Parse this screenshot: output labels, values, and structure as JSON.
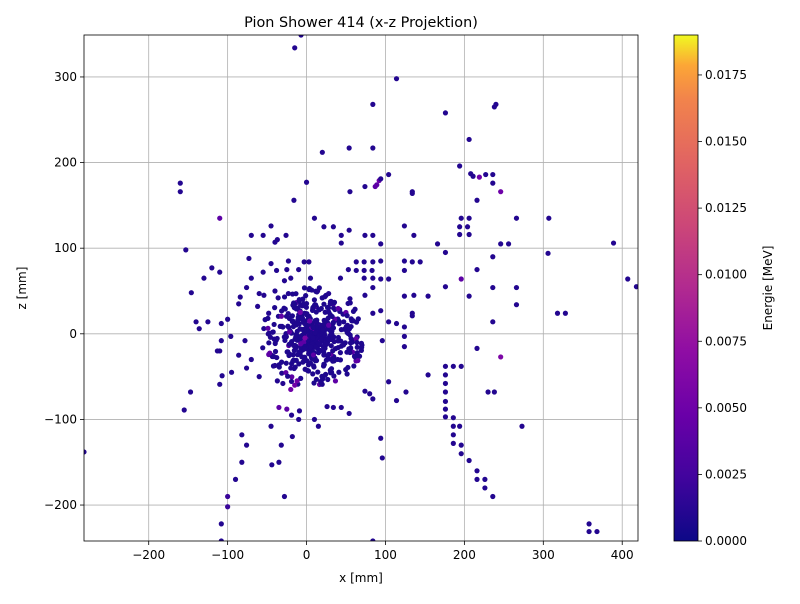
{
  "chart_data": {
    "type": "scatter",
    "title": "Pion Shower 414 (x-z Projektion)",
    "xlabel": "x [mm]",
    "ylabel": "z [mm]",
    "xlim": [
      -282,
      420
    ],
    "ylim": [
      -242,
      349
    ],
    "x_ticks": [
      -200,
      -100,
      0,
      100,
      200,
      300,
      400
    ],
    "y_ticks": [
      -200,
      -100,
      0,
      100,
      200,
      300
    ],
    "grid": true,
    "colorbar": {
      "label": "Energie [MeV]",
      "range": [
        0,
        0.019
      ],
      "ticks": [
        "0.0000",
        "0.0025",
        "0.0050",
        "0.0075",
        "0.0100",
        "0.0125",
        "0.0150",
        "0.0175"
      ],
      "colormap": "plasma"
    },
    "points": [
      [
        -15,
        334,
        0.001
      ],
      [
        -7,
        349,
        0.001
      ],
      [
        114,
        298,
        0.001
      ],
      [
        84,
        268,
        0.001
      ],
      [
        176,
        258,
        0.001
      ],
      [
        238,
        265,
        0.001
      ],
      [
        240,
        268,
        0.001
      ],
      [
        206,
        227,
        0.001
      ],
      [
        54,
        217,
        0.001
      ],
      [
        84,
        217,
        0.001
      ],
      [
        20,
        212,
        0.001
      ],
      [
        194,
        196,
        0.001
      ],
      [
        208,
        187,
        0.001
      ],
      [
        211,
        184,
        0.001
      ],
      [
        219,
        183,
        0.005
      ],
      [
        227,
        186,
        0.001
      ],
      [
        236,
        186,
        0.001
      ],
      [
        87,
        172,
        0.004
      ],
      [
        89,
        174,
        0.004
      ],
      [
        92,
        179,
        0.005
      ],
      [
        94,
        181,
        0.001
      ],
      [
        104,
        186,
        0.001
      ],
      [
        0,
        177,
        0.001
      ],
      [
        74,
        172,
        0.001
      ],
      [
        55,
        166,
        0.001
      ],
      [
        134,
        166,
        0.001
      ],
      [
        134,
        164,
        0.001
      ],
      [
        236,
        176,
        0.001
      ],
      [
        246,
        166,
        0.005
      ],
      [
        216,
        156,
        0.001
      ],
      [
        -16,
        156,
        0.001
      ],
      [
        -160,
        176,
        0.001
      ],
      [
        -160,
        166,
        0.001
      ],
      [
        -110,
        135,
        0.004
      ],
      [
        10,
        135,
        0.001
      ],
      [
        196,
        135,
        0.001
      ],
      [
        206,
        135,
        0.001
      ],
      [
        266,
        135,
        0.001
      ],
      [
        307,
        135,
        0.001
      ],
      [
        124,
        126,
        0.001
      ],
      [
        136,
        115,
        0.001
      ],
      [
        194,
        125,
        0.001
      ],
      [
        204,
        125,
        0.001
      ],
      [
        194,
        116,
        0.001
      ],
      [
        206,
        116,
        0.001
      ],
      [
        -45,
        126,
        0.001
      ],
      [
        -26,
        115,
        0.001
      ],
      [
        -55,
        115,
        0.001
      ],
      [
        -37,
        110,
        0.001
      ],
      [
        -70,
        115,
        0.001
      ],
      [
        -40,
        107,
        0.001
      ],
      [
        22,
        125,
        0.001
      ],
      [
        34,
        125,
        0.001
      ],
      [
        44,
        115,
        0.001
      ],
      [
        54,
        121,
        0.001
      ],
      [
        74,
        115,
        0.001
      ],
      [
        84,
        115,
        0.001
      ],
      [
        94,
        105,
        0.001
      ],
      [
        44,
        106,
        0.001
      ],
      [
        166,
        105,
        0.001
      ],
      [
        246,
        105,
        0.001
      ],
      [
        256,
        105,
        0.001
      ],
      [
        389,
        106,
        0.001
      ],
      [
        -153,
        98,
        0.001
      ],
      [
        -110,
        72,
        0.001
      ],
      [
        -120,
        77,
        0.001
      ],
      [
        -130,
        65,
        0.001
      ],
      [
        176,
        95,
        0.001
      ],
      [
        236,
        90,
        0.001
      ],
      [
        306,
        94,
        0.001
      ],
      [
        -23,
        85,
        0.001
      ],
      [
        -3,
        84,
        0.001
      ],
      [
        3,
        84,
        0.001
      ],
      [
        -45,
        82,
        0.001
      ],
      [
        -73,
        88,
        0.001
      ],
      [
        63,
        84,
        0.001
      ],
      [
        73,
        84,
        0.001
      ],
      [
        84,
        84,
        0.001
      ],
      [
        94,
        85,
        0.001
      ],
      [
        124,
        85,
        0.001
      ],
      [
        134,
        84,
        0.001
      ],
      [
        144,
        84,
        0.001
      ],
      [
        -10,
        75,
        0.001
      ],
      [
        -38,
        74,
        0.001
      ],
      [
        -25,
        75,
        0.001
      ],
      [
        -55,
        72,
        0.001
      ],
      [
        53,
        75,
        0.001
      ],
      [
        63,
        74,
        0.001
      ],
      [
        73,
        74,
        0.001
      ],
      [
        83,
        74,
        0.001
      ],
      [
        124,
        74,
        0.001
      ],
      [
        216,
        75,
        0.001
      ],
      [
        -20,
        65,
        0.001
      ],
      [
        5,
        65,
        0.001
      ],
      [
        43,
        65,
        0.001
      ],
      [
        -70,
        65,
        0.001
      ],
      [
        -28,
        62,
        0.001
      ],
      [
        73,
        65,
        0.001
      ],
      [
        84,
        65,
        0.001
      ],
      [
        94,
        64,
        0.001
      ],
      [
        104,
        64,
        0.001
      ],
      [
        196,
        64,
        0.004
      ],
      [
        418,
        55,
        0.001
      ],
      [
        407,
        64,
        0.001
      ],
      [
        236,
        54,
        0.001
      ],
      [
        266,
        54,
        0.001
      ],
      [
        -146,
        48,
        0.001
      ],
      [
        -76,
        54,
        0.001
      ],
      [
        -60,
        47,
        0.001
      ],
      [
        -40,
        50,
        0.001
      ],
      [
        -54,
        45,
        0.001
      ],
      [
        -84,
        43,
        0.001
      ],
      [
        -36,
        42,
        0.001
      ],
      [
        124,
        44,
        0.001
      ],
      [
        136,
        45,
        0.001
      ],
      [
        154,
        44,
        0.001
      ],
      [
        206,
        44,
        0.001
      ],
      [
        176,
        55,
        0.001
      ],
      [
        84,
        54,
        0.001
      ],
      [
        74,
        45,
        0.001
      ],
      [
        -23,
        47,
        0.001
      ],
      [
        14,
        50,
        0.001
      ],
      [
        28,
        47,
        0.001
      ],
      [
        55,
        41,
        0.001
      ],
      [
        30,
        35,
        0.001
      ],
      [
        266,
        34,
        0.001
      ],
      [
        318,
        24,
        0.001
      ],
      [
        328,
        24,
        0.001
      ],
      [
        134,
        24,
        0.001
      ],
      [
        134,
        21,
        0.001
      ],
      [
        84,
        24,
        0.001
      ],
      [
        94,
        27,
        0.001
      ],
      [
        -62,
        32,
        0.001
      ],
      [
        -48,
        24,
        0.001
      ],
      [
        -86,
        35,
        0.001
      ],
      [
        -100,
        17,
        0.001
      ],
      [
        -108,
        12,
        0.001
      ],
      [
        -125,
        14,
        0.001
      ],
      [
        -140,
        14,
        0.001
      ],
      [
        -136,
        6,
        0.001
      ],
      [
        236,
        14,
        0.001
      ],
      [
        104,
        14,
        0.001
      ],
      [
        114,
        12,
        0.001
      ],
      [
        124,
        8,
        0.001
      ],
      [
        -8,
        25,
        0.005
      ],
      [
        4,
        15,
        0.005
      ],
      [
        -2,
        -5,
        0.006
      ],
      [
        28,
        10,
        0.004
      ],
      [
        -110,
        -20,
        0.001
      ],
      [
        -113,
        -20,
        0.001
      ],
      [
        -108,
        -8,
        0.001
      ],
      [
        -96,
        -3,
        0.001
      ],
      [
        -78,
        -8,
        0.001
      ],
      [
        -86,
        -25,
        0.001
      ],
      [
        -70,
        -30,
        0.001
      ],
      [
        124,
        -3,
        0.001
      ],
      [
        124,
        -15,
        0.001
      ],
      [
        96,
        -8,
        0.001
      ],
      [
        216,
        -17,
        0.001
      ],
      [
        246,
        -27,
        0.006
      ],
      [
        -20,
        -40,
        0.001
      ],
      [
        -37,
        -55,
        0.001
      ],
      [
        -30,
        -58,
        0.001
      ],
      [
        -15,
        -60,
        0.005
      ],
      [
        -20,
        -65,
        0.005
      ],
      [
        -12,
        -55,
        0.005
      ],
      [
        -60,
        -50,
        0.001
      ],
      [
        -95,
        -45,
        0.001
      ],
      [
        -76,
        -40,
        0.001
      ],
      [
        -40,
        -37,
        0.001
      ],
      [
        154,
        -48,
        0.001
      ],
      [
        176,
        -38,
        0.001
      ],
      [
        186,
        -38,
        0.001
      ],
      [
        196,
        -38,
        0.001
      ],
      [
        176,
        -48,
        0.001
      ],
      [
        176,
        -58,
        0.001
      ],
      [
        104,
        -56,
        0.001
      ],
      [
        80,
        -70,
        0.001
      ],
      [
        84,
        -76,
        0.001
      ],
      [
        74,
        -67,
        0.001
      ],
      [
        126,
        -68,
        0.001
      ],
      [
        114,
        -78,
        0.001
      ],
      [
        176,
        -68,
        0.001
      ],
      [
        176,
        -79,
        0.001
      ],
      [
        230,
        -68,
        0.001
      ],
      [
        238,
        -68,
        0.001
      ],
      [
        -147,
        -68,
        0.001
      ],
      [
        -110,
        -59,
        0.001
      ],
      [
        -107,
        -49,
        0.001
      ],
      [
        -19,
        -95,
        0.001
      ],
      [
        -9,
        -90,
        0.001
      ],
      [
        -35,
        -86,
        0.004
      ],
      [
        -25,
        -88,
        0.004
      ],
      [
        -10,
        -100,
        0.001
      ],
      [
        10,
        -100,
        0.001
      ],
      [
        15,
        -108,
        0.001
      ],
      [
        -155,
        -89,
        0.001
      ],
      [
        26,
        -85,
        0.001
      ],
      [
        34,
        -86,
        0.001
      ],
      [
        44,
        -86,
        0.001
      ],
      [
        54,
        -93,
        0.001
      ],
      [
        176,
        -88,
        0.001
      ],
      [
        176,
        -97,
        0.001
      ],
      [
        186,
        -98,
        0.001
      ],
      [
        186,
        -108,
        0.001
      ],
      [
        194,
        -108,
        0.001
      ],
      [
        273,
        -108,
        0.001
      ],
      [
        -45,
        -108,
        0.001
      ],
      [
        -82,
        -118,
        0.001
      ],
      [
        -76,
        -130,
        0.001
      ],
      [
        -18,
        -120,
        0.001
      ],
      [
        -32,
        -130,
        0.001
      ],
      [
        94,
        -122,
        0.001
      ],
      [
        186,
        -118,
        0.001
      ],
      [
        186,
        -128,
        0.001
      ],
      [
        196,
        -130,
        0.001
      ],
      [
        196,
        -140,
        0.001
      ],
      [
        206,
        -148,
        0.001
      ],
      [
        -35,
        -150,
        0.001
      ],
      [
        -44,
        -153,
        0.001
      ],
      [
        -82,
        -150,
        0.001
      ],
      [
        96,
        -145,
        0.001
      ],
      [
        216,
        -160,
        0.001
      ],
      [
        216,
        -170,
        0.001
      ],
      [
        226,
        -170,
        0.001
      ],
      [
        226,
        -180,
        0.001
      ],
      [
        236,
        -190,
        0.001
      ],
      [
        -90,
        -170,
        0.001
      ],
      [
        -28,
        -190,
        0.001
      ],
      [
        -100,
        -190,
        0.002
      ],
      [
        -100,
        -202,
        0.002
      ],
      [
        -108,
        -222,
        0.001
      ],
      [
        -108,
        -242,
        0.001
      ],
      [
        84,
        -242,
        0.001
      ],
      [
        -282,
        -138,
        0.001
      ],
      [
        358,
        -222,
        0.001
      ],
      [
        358,
        -231,
        0.001
      ],
      [
        368,
        -231,
        0.001
      ]
    ]
  }
}
